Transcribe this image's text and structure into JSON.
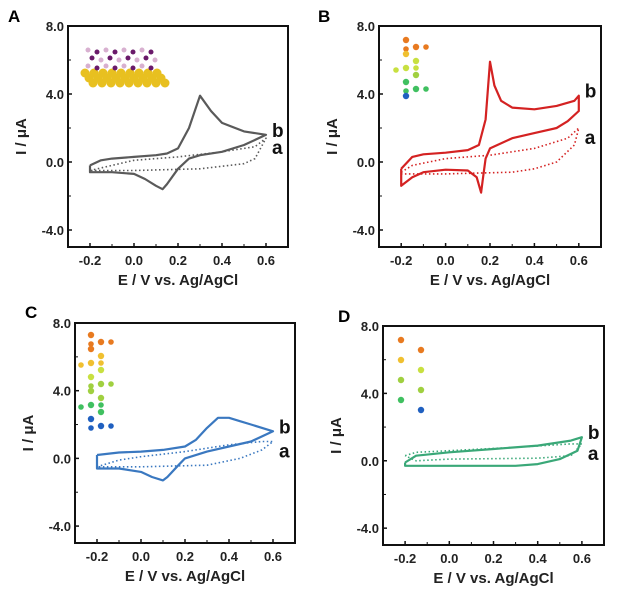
{
  "chart_data": [
    {
      "type": "line",
      "panel": "A",
      "color": "#5a5a5a",
      "xlabel": "E / V vs. Ag/AgCl",
      "ylabel": "I / μA",
      "xlim": [
        -0.3,
        0.7
      ],
      "ylim": [
        -5,
        8
      ],
      "xticks": [
        "-0.2",
        "0.0",
        "0.2",
        "0.4",
        "0.6"
      ],
      "yticks": [
        "8.0",
        "4.0",
        "0.0",
        "-4.0"
      ],
      "series": [
        {
          "name": "b",
          "style": "solid",
          "points": [
            [
              -0.2,
              -0.2
            ],
            [
              -0.15,
              0.1
            ],
            [
              -0.1,
              0.2
            ],
            [
              0,
              0.3
            ],
            [
              0.1,
              0.4
            ],
            [
              0.15,
              0.5
            ],
            [
              0.2,
              0.8
            ],
            [
              0.25,
              2.0
            ],
            [
              0.3,
              3.9
            ],
            [
              0.35,
              3.0
            ],
            [
              0.4,
              2.3
            ],
            [
              0.5,
              1.8
            ],
            [
              0.6,
              1.6
            ],
            [
              0.5,
              1.0
            ],
            [
              0.4,
              0.6
            ],
            [
              0.3,
              0.4
            ],
            [
              0.25,
              0.2
            ],
            [
              0.2,
              -0.4
            ],
            [
              0.15,
              -1.3
            ],
            [
              0.13,
              -1.6
            ],
            [
              0.1,
              -1.4
            ],
            [
              0.05,
              -1.0
            ],
            [
              0,
              -0.7
            ],
            [
              -0.1,
              -0.6
            ],
            [
              -0.2,
              -0.6
            ],
            [
              -0.2,
              -0.2
            ]
          ]
        },
        {
          "name": "a",
          "style": "dotted",
          "points": [
            [
              -0.2,
              -0.5
            ],
            [
              0,
              0.1
            ],
            [
              0.2,
              0.3
            ],
            [
              0.4,
              0.6
            ],
            [
              0.55,
              0.9
            ],
            [
              0.6,
              1.4
            ],
            [
              0.55,
              0.2
            ],
            [
              0.5,
              -0.1
            ],
            [
              0.3,
              -0.4
            ],
            [
              0,
              -0.5
            ],
            [
              -0.2,
              -0.5
            ]
          ]
        }
      ]
    },
    {
      "type": "line",
      "panel": "B",
      "color": "#d42222",
      "xlabel": "E / V vs. Ag/AgCl",
      "ylabel": "I / μA",
      "xlim": [
        -0.3,
        0.7
      ],
      "ylim": [
        -5,
        8
      ],
      "xticks": [
        "-0.2",
        "0.0",
        "0.2",
        "0.4",
        "0.6"
      ],
      "yticks": [
        "8.0",
        "4.0",
        "0.0",
        "-4.0"
      ],
      "series": [
        {
          "name": "b",
          "style": "solid",
          "points": [
            [
              -0.2,
              -0.4
            ],
            [
              -0.15,
              0.3
            ],
            [
              -0.1,
              0.45
            ],
            [
              0,
              0.55
            ],
            [
              0.1,
              0.7
            ],
            [
              0.15,
              1.0
            ],
            [
              0.18,
              2.5
            ],
            [
              0.2,
              5.9
            ],
            [
              0.22,
              4.5
            ],
            [
              0.25,
              3.6
            ],
            [
              0.3,
              3.2
            ],
            [
              0.4,
              3.1
            ],
            [
              0.5,
              3.3
            ],
            [
              0.58,
              3.6
            ],
            [
              0.6,
              3.9
            ],
            [
              0.6,
              3.0
            ],
            [
              0.55,
              2.4
            ],
            [
              0.5,
              2.0
            ],
            [
              0.4,
              1.7
            ],
            [
              0.3,
              1.4
            ],
            [
              0.2,
              0.8
            ],
            [
              0.18,
              0.2
            ],
            [
              0.17,
              -0.8
            ],
            [
              0.16,
              -1.8
            ],
            [
              0.14,
              -0.9
            ],
            [
              0.1,
              -0.5
            ],
            [
              0,
              -0.45
            ],
            [
              -0.1,
              -0.6
            ],
            [
              -0.15,
              -0.9
            ],
            [
              -0.2,
              -1.4
            ],
            [
              -0.2,
              -0.4
            ]
          ]
        },
        {
          "name": "a",
          "style": "dotted",
          "points": [
            [
              -0.2,
              -0.6
            ],
            [
              -0.15,
              -0.2
            ],
            [
              0,
              0.2
            ],
            [
              0.2,
              0.4
            ],
            [
              0.4,
              0.8
            ],
            [
              0.55,
              1.4
            ],
            [
              0.6,
              2.0
            ],
            [
              0.58,
              1.0
            ],
            [
              0.5,
              0.0
            ],
            [
              0.4,
              -0.4
            ],
            [
              0.3,
              -0.6
            ],
            [
              0,
              -0.7
            ],
            [
              -0.2,
              -0.7
            ],
            [
              -0.2,
              -0.6
            ]
          ]
        }
      ]
    },
    {
      "type": "line",
      "panel": "C",
      "color": "#3a78c0",
      "xlabel": "E / V vs. Ag/AgCl",
      "ylabel": "I / μA",
      "xlim": [
        -0.3,
        0.7
      ],
      "ylim": [
        -5,
        8
      ],
      "xticks": [
        "-0.2",
        "0.0",
        "0.2",
        "0.4",
        "0.6"
      ],
      "yticks": [
        "8.0",
        "4.0",
        "0.0",
        "-4.0"
      ],
      "series": [
        {
          "name": "b",
          "style": "solid",
          "points": [
            [
              -0.2,
              0.2
            ],
            [
              -0.1,
              0.35
            ],
            [
              0,
              0.4
            ],
            [
              0.1,
              0.5
            ],
            [
              0.2,
              0.7
            ],
            [
              0.25,
              1.1
            ],
            [
              0.3,
              1.8
            ],
            [
              0.35,
              2.4
            ],
            [
              0.4,
              2.4
            ],
            [
              0.45,
              2.2
            ],
            [
              0.5,
              2.0
            ],
            [
              0.6,
              1.6
            ],
            [
              0.5,
              1.0
            ],
            [
              0.4,
              0.7
            ],
            [
              0.3,
              0.4
            ],
            [
              0.2,
              0.0
            ],
            [
              0.17,
              -0.4
            ],
            [
              0.12,
              -1.1
            ],
            [
              0.1,
              -1.3
            ],
            [
              0.05,
              -1.1
            ],
            [
              0,
              -0.8
            ],
            [
              -0.1,
              -0.6
            ],
            [
              -0.2,
              -0.6
            ],
            [
              -0.2,
              0.2
            ]
          ]
        },
        {
          "name": "a",
          "style": "dotted",
          "points": [
            [
              -0.2,
              -0.5
            ],
            [
              -0.1,
              -0.1
            ],
            [
              0,
              0.1
            ],
            [
              0.2,
              0.4
            ],
            [
              0.4,
              0.8
            ],
            [
              0.55,
              1.0
            ],
            [
              0.6,
              1.0
            ],
            [
              0.55,
              0.5
            ],
            [
              0.45,
              0.0
            ],
            [
              0.3,
              -0.4
            ],
            [
              0,
              -0.5
            ],
            [
              -0.2,
              -0.5
            ]
          ]
        }
      ]
    },
    {
      "type": "line",
      "panel": "D",
      "color": "#3aa878",
      "xlabel": "E / V vs. Ag/AgCl",
      "ylabel": "I / μA",
      "xlim": [
        -0.3,
        0.7
      ],
      "ylim": [
        -5,
        8
      ],
      "xticks": [
        "-0.2",
        "0.0",
        "0.2",
        "0.4",
        "0.6"
      ],
      "yticks": [
        "8.0",
        "4.0",
        "0.0",
        "-4.0"
      ],
      "series": [
        {
          "name": "b",
          "style": "solid",
          "points": [
            [
              -0.2,
              -0.1
            ],
            [
              -0.15,
              0.3
            ],
            [
              0,
              0.5
            ],
            [
              0.2,
              0.7
            ],
            [
              0.4,
              0.9
            ],
            [
              0.55,
              1.2
            ],
            [
              0.6,
              1.4
            ],
            [
              0.58,
              0.6
            ],
            [
              0.5,
              0.1
            ],
            [
              0.4,
              -0.2
            ],
            [
              0.3,
              -0.3
            ],
            [
              0,
              -0.3
            ],
            [
              -0.2,
              -0.3
            ],
            [
              -0.2,
              -0.1
            ]
          ]
        },
        {
          "name": "a",
          "style": "dotted",
          "points": [
            [
              -0.2,
              0.3
            ],
            [
              -0.15,
              0.5
            ],
            [
              0,
              0.6
            ],
            [
              0.3,
              0.8
            ],
            [
              0.55,
              1.0
            ],
            [
              0.6,
              1.0
            ],
            [
              0.55,
              0.3
            ],
            [
              0.4,
              0.15
            ],
            [
              0,
              0.1
            ],
            [
              -0.15,
              0.0
            ],
            [
              -0.2,
              0.3
            ]
          ]
        }
      ]
    }
  ]
}
